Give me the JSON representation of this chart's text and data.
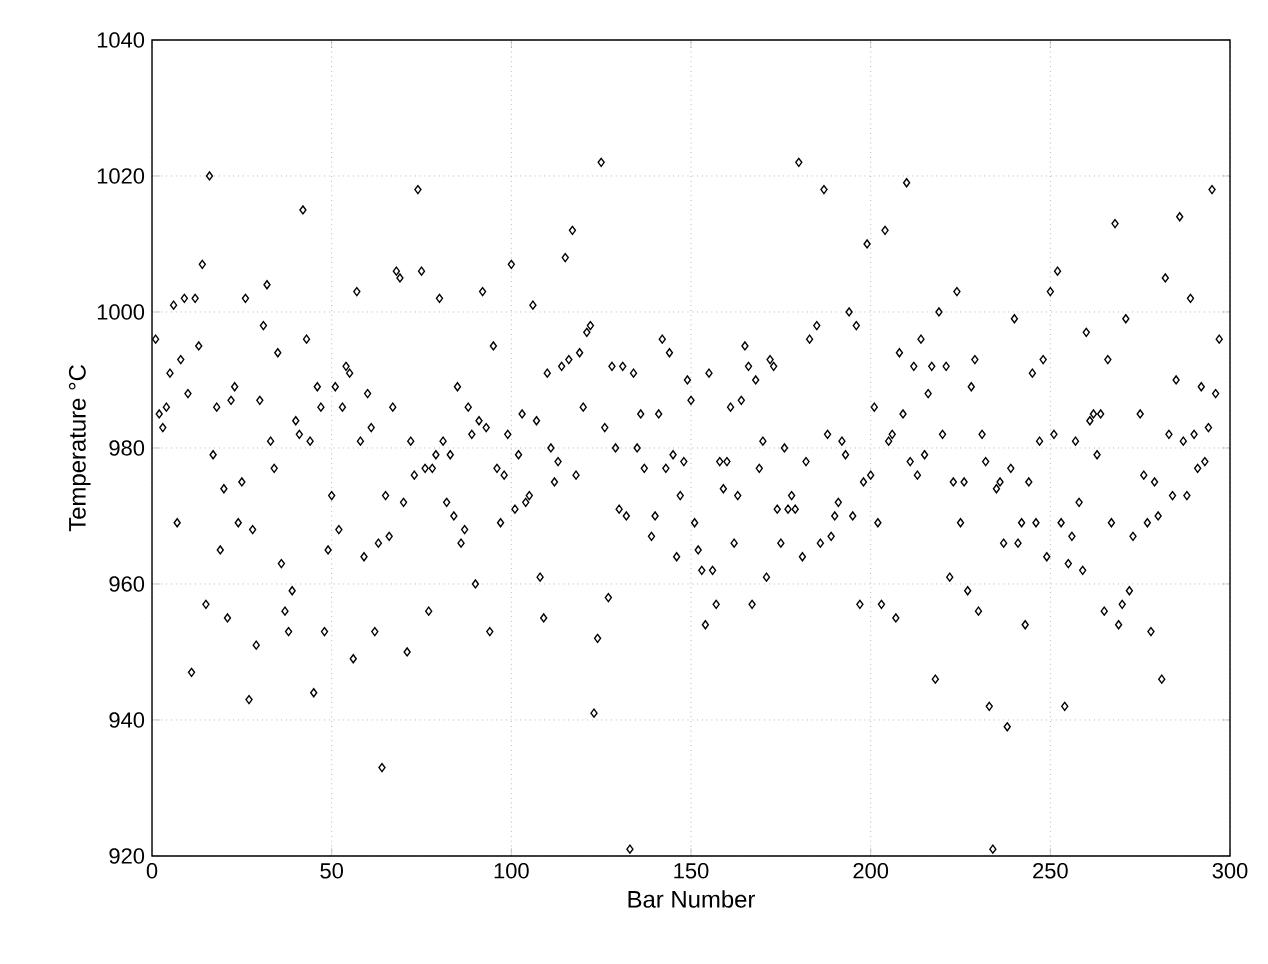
{
  "chart_data": {
    "type": "scatter",
    "xlabel": "Bar Number",
    "ylabel": "Temperature °C",
    "xlim": [
      0,
      300
    ],
    "ylim": [
      920,
      1040
    ],
    "xticks": [
      0,
      50,
      100,
      150,
      200,
      250,
      300
    ],
    "yticks": [
      920,
      940,
      960,
      980,
      1000,
      1020,
      1040
    ],
    "grid": true,
    "marker": "diamond",
    "series": [
      {
        "color": "#000000",
        "x": [
          1,
          2,
          3,
          4,
          5,
          6,
          7,
          8,
          9,
          10,
          11,
          12,
          13,
          14,
          15,
          16,
          17,
          18,
          19,
          20,
          21,
          22,
          23,
          24,
          25,
          26,
          27,
          28,
          29,
          30,
          31,
          32,
          33,
          34,
          35,
          36,
          37,
          38,
          39,
          40,
          41,
          42,
          43,
          44,
          45,
          46,
          47,
          48,
          49,
          50,
          51,
          52,
          53,
          54,
          55,
          56,
          57,
          58,
          59,
          60,
          61,
          62,
          63,
          64,
          65,
          66,
          67,
          68,
          69,
          70,
          71,
          72,
          73,
          74,
          75,
          76,
          77,
          78,
          79,
          80,
          81,
          82,
          83,
          84,
          85,
          86,
          87,
          88,
          89,
          90,
          91,
          92,
          93,
          94,
          95,
          96,
          97,
          98,
          99,
          100,
          101,
          102,
          103,
          104,
          105,
          106,
          107,
          108,
          109,
          110,
          111,
          112,
          113,
          114,
          115,
          116,
          117,
          118,
          119,
          120,
          121,
          122,
          123,
          124,
          125,
          126,
          127,
          128,
          129,
          130,
          131,
          132,
          133,
          134,
          135,
          136,
          137,
          139,
          140,
          141,
          142,
          143,
          144,
          145,
          146,
          147,
          148,
          149,
          150,
          151,
          152,
          153,
          154,
          155,
          156,
          157,
          158,
          159,
          160,
          161,
          162,
          163,
          164,
          165,
          166,
          167,
          168,
          169,
          170,
          171,
          172,
          173,
          174,
          175,
          176,
          177,
          178,
          179,
          180,
          181,
          182,
          183,
          185,
          186,
          187,
          188,
          189,
          190,
          191,
          192,
          193,
          194,
          195,
          196,
          197,
          198,
          199,
          200,
          201,
          202,
          203,
          204,
          205,
          206,
          207,
          208,
          209,
          210,
          211,
          212,
          213,
          214,
          215,
          216,
          217,
          218,
          219,
          220,
          221,
          222,
          223,
          224,
          225,
          226,
          227,
          228,
          229,
          230,
          231,
          232,
          233,
          234,
          235,
          236,
          237,
          238,
          239,
          240,
          241,
          242,
          243,
          244,
          245,
          246,
          247,
          248,
          249,
          250,
          251,
          252,
          253,
          254,
          255,
          256,
          257,
          258,
          259,
          260,
          261,
          262,
          263,
          264,
          265,
          266,
          267,
          268,
          269,
          270,
          271,
          272,
          273,
          275,
          276,
          277,
          278,
          279,
          280,
          281,
          282,
          283,
          284,
          285,
          286,
          287,
          288,
          289,
          290,
          291,
          292,
          293,
          294,
          295,
          296,
          297
        ],
        "values": [
          996,
          985,
          983,
          986,
          991,
          1001,
          969,
          993,
          1002,
          988,
          947,
          1002,
          995,
          1007,
          957,
          1020,
          979,
          986,
          965,
          974,
          955,
          987,
          989,
          969,
          975,
          1002,
          943,
          968,
          951,
          987,
          998,
          1004,
          981,
          977,
          994,
          963,
          956,
          953,
          959,
          984,
          982,
          1015,
          996,
          981,
          944,
          989,
          986,
          953,
          965,
          973,
          989,
          968,
          986,
          992,
          991,
          949,
          1003,
          981,
          964,
          988,
          983,
          953,
          966,
          933,
          973,
          967,
          986,
          1006,
          1005,
          972,
          950,
          981,
          976,
          1018,
          1006,
          977,
          956,
          977,
          979,
          1002,
          981,
          972,
          979,
          970,
          989,
          966,
          968,
          986,
          982,
          960,
          984,
          1003,
          983,
          953,
          995,
          977,
          969,
          976,
          982,
          1007,
          971,
          979,
          985,
          972,
          973,
          1001,
          984,
          961,
          955,
          991,
          980,
          975,
          978,
          992,
          1008,
          993,
          1012,
          976,
          994,
          986,
          997,
          998,
          941,
          952,
          1022,
          983,
          958,
          992,
          980,
          971,
          992,
          970,
          921,
          991,
          980,
          985,
          977,
          967,
          970,
          985,
          996,
          977,
          994,
          979,
          964,
          973,
          978,
          990,
          987,
          969,
          965,
          962,
          954,
          991,
          962,
          957,
          978,
          974,
          978,
          986,
          966,
          973,
          987,
          995,
          992,
          957,
          990,
          977,
          981,
          961,
          993,
          992,
          971,
          966,
          980,
          971,
          973,
          971,
          1022,
          964,
          978,
          996,
          998,
          966,
          1018,
          982,
          967,
          970,
          972,
          981,
          979,
          1000,
          970,
          998,
          957,
          975,
          1010,
          976,
          986,
          969,
          957,
          1012,
          981,
          982,
          955,
          994,
          985,
          1019,
          978,
          992,
          976,
          996,
          979,
          988,
          992,
          946,
          1000,
          982,
          992,
          961,
          975,
          1003,
          969,
          975,
          959,
          989,
          993,
          956,
          982,
          978,
          942,
          921,
          974,
          975,
          966,
          939,
          977,
          999,
          966,
          969,
          954,
          975,
          991,
          969,
          981,
          993,
          964,
          1003,
          982,
          1006,
          969,
          942,
          963,
          967,
          981,
          972,
          962,
          997,
          984,
          985,
          979,
          985,
          956,
          993,
          969,
          1013,
          954,
          957,
          999,
          959,
          967,
          985,
          976,
          969,
          953,
          975,
          970,
          946,
          1005,
          982,
          973,
          990,
          1014,
          981,
          973,
          1002,
          982,
          977,
          989,
          978,
          983,
          1018,
          988,
          996
        ]
      }
    ]
  }
}
